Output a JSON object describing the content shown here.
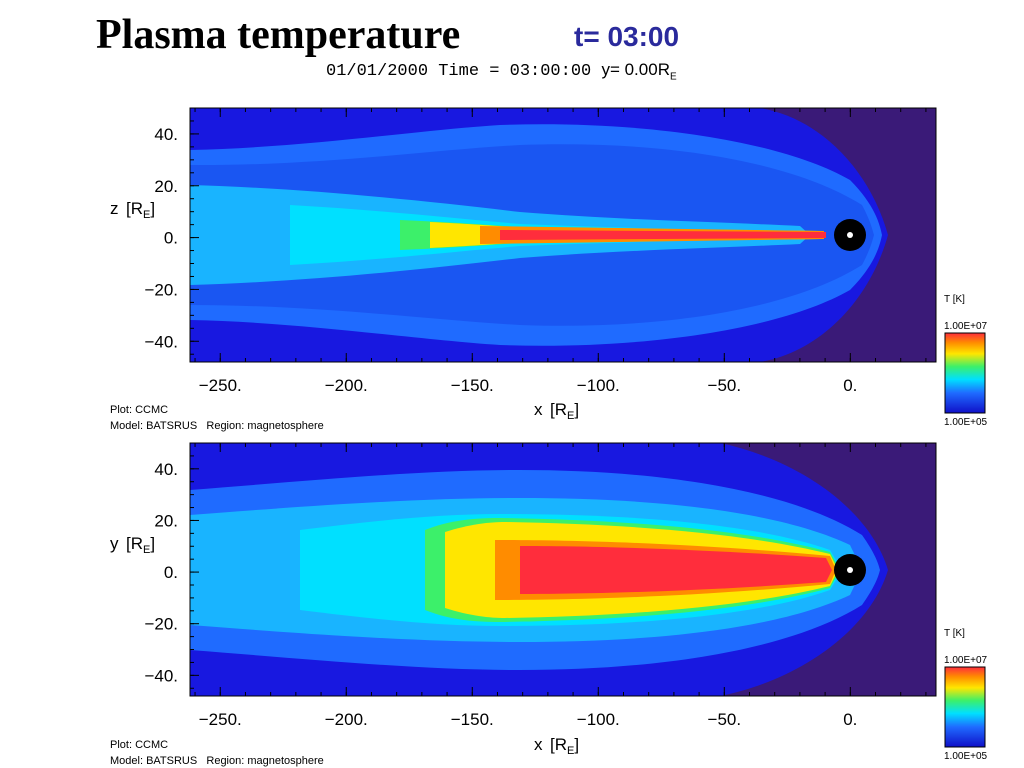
{
  "title": "Plasma temperature",
  "subtitle": "t= 03:00",
  "header": {
    "date_time": "01/01/2000 Time = 03:00:00",
    "y_eq": "y= 0.00R",
    "y_sub": "E"
  },
  "colors": {
    "background_dark": "#3a1a78",
    "low": "#1616e8",
    "mid_blue": "#1f6bff",
    "cyan": "#00e0ff",
    "green": "#3cf06a",
    "yellow": "#ffe600",
    "orange": "#ff8c00",
    "red": "#ff2d3c"
  },
  "chart_data": [
    {
      "type": "heatmap",
      "name": "xz-plane",
      "xlabel": "x [R_E]",
      "ylabel": "z [R_E]",
      "xlabel_text": "x",
      "ylabel_text": "z",
      "xlim": [
        -262,
        34
      ],
      "ylim": [
        -48,
        50
      ],
      "xticks": [
        -250,
        -200,
        -150,
        -100,
        -50,
        0
      ],
      "yticks": [
        40,
        20,
        0,
        -20,
        -40
      ],
      "xtick_labels": [
        "−250.",
        "−200.",
        "−150.",
        "−100.",
        "−50.",
        "0."
      ],
      "ytick_labels": [
        "40.",
        "20.",
        "0.",
        "−20.",
        "−40."
      ],
      "colorbar": {
        "label": "T [K]",
        "max": "1.00E+07",
        "min": "1.00E+05",
        "scale": "log"
      },
      "footer": {
        "plot": "Plot: CCMC",
        "model": "Model: BATSRUS   Region: magnetosphere"
      }
    },
    {
      "type": "heatmap",
      "name": "xy-plane",
      "xlabel": "x [R_E]",
      "ylabel": "y [R_E]",
      "xlabel_text": "x",
      "ylabel_text": "y",
      "xlim": [
        -262,
        34
      ],
      "ylim": [
        -48,
        50
      ],
      "xticks": [
        -250,
        -200,
        -150,
        -100,
        -50,
        0
      ],
      "yticks": [
        40,
        20,
        0,
        -20,
        -40
      ],
      "xtick_labels": [
        "−250.",
        "−200.",
        "−150.",
        "−100.",
        "−50.",
        "0."
      ],
      "ytick_labels": [
        "40.",
        "20.",
        "0.",
        "−20.",
        "−40."
      ],
      "colorbar": {
        "label": "T [K]",
        "max": "1.00E+07",
        "min": "1.00E+05",
        "scale": "log"
      },
      "footer": {
        "plot": "Plot: CCMC",
        "model": "Model: BATSRUS   Region: magnetosphere"
      }
    }
  ]
}
